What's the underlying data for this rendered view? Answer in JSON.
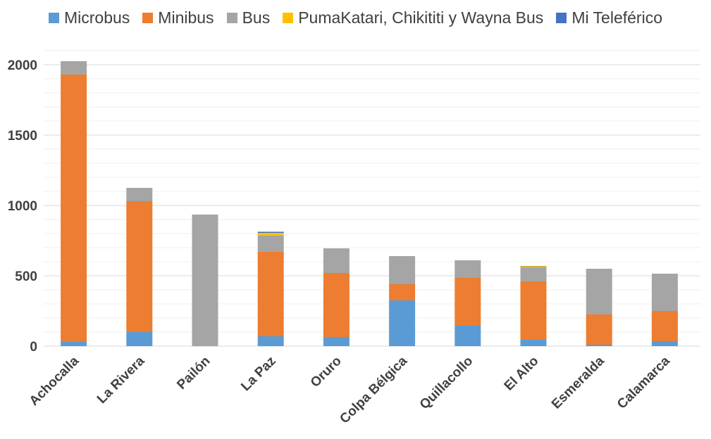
{
  "chart_data": {
    "type": "bar",
    "stacked": true,
    "categories": [
      "Achocalla",
      "La Rivera",
      "Pailón",
      "La Paz",
      "Oruro",
      "Colpa Bélgica",
      "Quillacollo",
      "El Alto",
      "Esmeralda",
      "Calamarca"
    ],
    "series": [
      {
        "name": "Microbus",
        "color": "#5B9BD5",
        "values": [
          30,
          100,
          0,
          70,
          65,
          325,
          145,
          45,
          10,
          35
        ]
      },
      {
        "name": "Minibus",
        "color": "#ED7D31",
        "values": [
          1900,
          930,
          0,
          600,
          455,
          115,
          340,
          415,
          215,
          215
        ]
      },
      {
        "name": "Bus",
        "color": "#A5A5A5",
        "values": [
          95,
          95,
          935,
          115,
          175,
          200,
          125,
          100,
          325,
          265
        ]
      },
      {
        "name": "PumaKatari, Chikititi y Wayna Bus",
        "color": "#FFC000",
        "values": [
          0,
          0,
          0,
          20,
          0,
          0,
          0,
          8,
          0,
          0
        ]
      },
      {
        "name": "Mi Teleférico",
        "color": "#4472C4",
        "values": [
          0,
          0,
          0,
          8,
          0,
          0,
          0,
          2,
          0,
          0
        ]
      }
    ],
    "yticks": [
      "0",
      "500",
      "1000",
      "1500",
      "2000"
    ],
    "ylim": [
      0,
      2100
    ],
    "grid": true,
    "legend_position": "top"
  }
}
